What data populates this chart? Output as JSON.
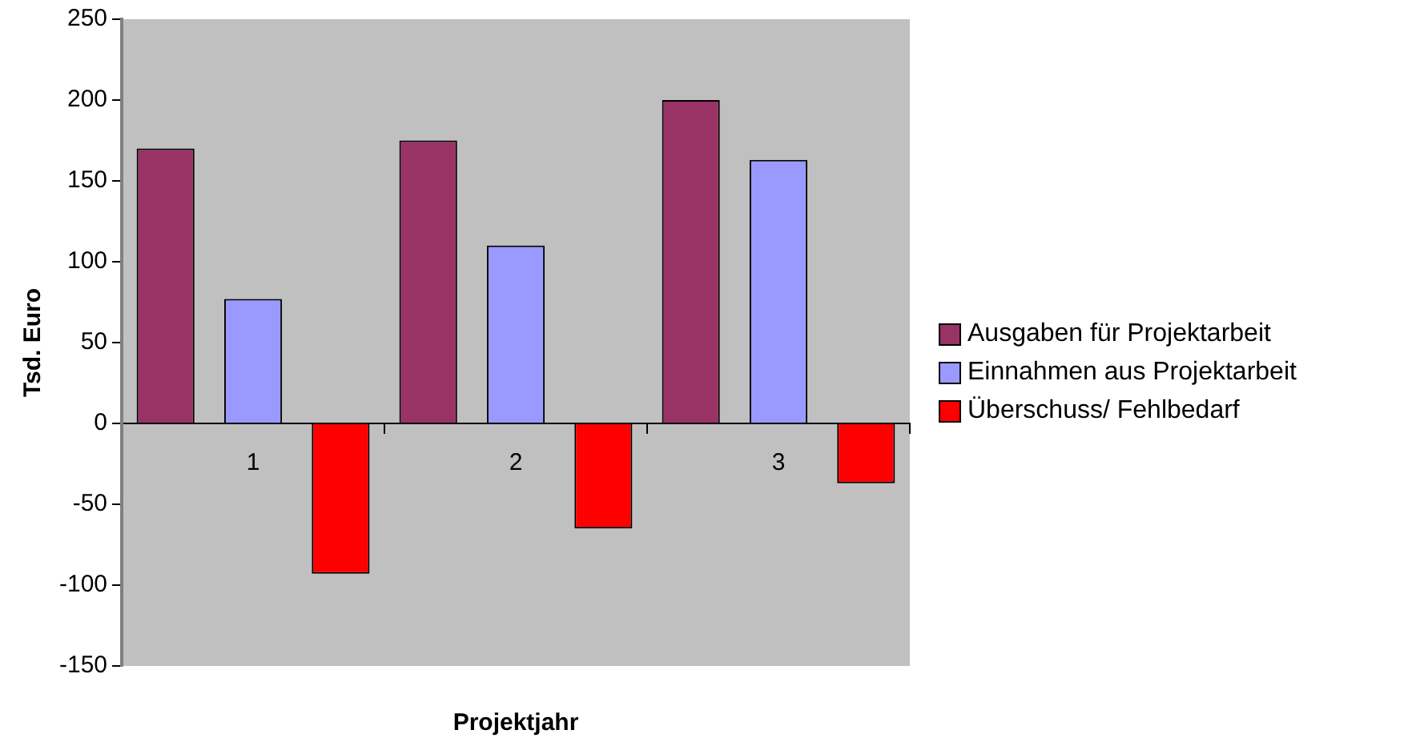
{
  "chart_data": {
    "type": "bar",
    "xlabel": "Projektjahr",
    "ylabel": "Tsd. Euro",
    "categories": [
      "1",
      "2",
      "3"
    ],
    "series": [
      {
        "name": "Ausgaben für Projektarbeit",
        "color": "#993366",
        "values": [
          170,
          175,
          200
        ]
      },
      {
        "name": "Einnahmen aus Projektarbeit",
        "color": "#9999ff",
        "values": [
          77,
          110,
          163
        ]
      },
      {
        "name": "Überschuss/ Fehlbedarf",
        "color": "#ff0000",
        "values": [
          -93,
          -65,
          -37
        ]
      }
    ],
    "ylim": [
      -150,
      250
    ],
    "yticks": [
      -150,
      -100,
      -50,
      0,
      50,
      100,
      150,
      200,
      250
    ],
    "grid": false,
    "legend": "right"
  }
}
